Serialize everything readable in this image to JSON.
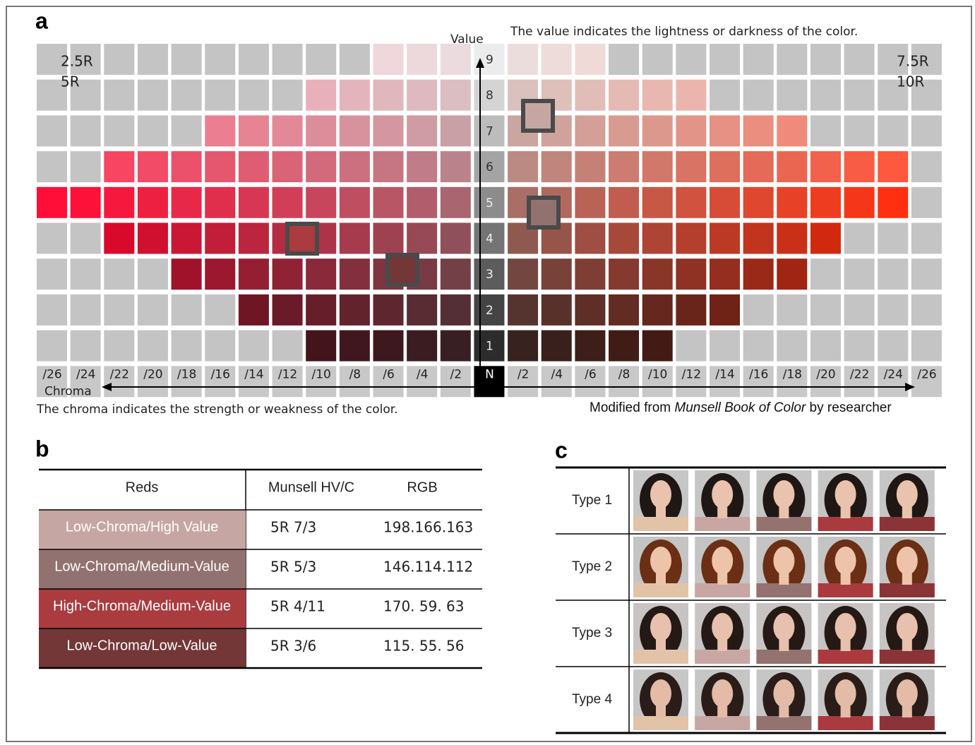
{
  "panel_a": {
    "label": "a",
    "value_axis": "Value",
    "value_note": "The value indicates the lightness or darkness of the color.",
    "hues_left": [
      "2.5R",
      "5R"
    ],
    "hues_right": [
      "7.5R",
      "10R"
    ],
    "values": [
      "9",
      "8",
      "7",
      "6",
      "5",
      "4",
      "3",
      "2",
      "1"
    ],
    "chroma_labels": [
      "/26",
      "/24",
      "/22",
      "/20",
      "/18",
      "/16",
      "/14",
      "/12",
      "/10",
      "/8",
      "/6",
      "/4",
      "/2",
      "N",
      "/2",
      "/4",
      "/6",
      "/8",
      "/10",
      "/12",
      "/14",
      "/16",
      "/18",
      "/20",
      "/22",
      "/24",
      "/26"
    ],
    "chroma_axis": "Chroma",
    "chroma_note": "The chroma indicates the strength or weakness of the color.",
    "credit": {
      "prefix": "Modified from ",
      "title": "Munsell Book of Color",
      "suffix": " by researcher"
    }
  },
  "panel_b": {
    "label": "b",
    "header": [
      "Reds",
      "Munsell HV/C",
      "RGB"
    ],
    "rows": [
      [
        "Low-Chroma/High Value",
        "5R 7/3",
        "198.166.163"
      ],
      [
        "Low-Chroma/Medium-Value",
        "5R 5/3",
        "146.114.112"
      ],
      [
        "High-Chroma/Medium-Value",
        "5R 4/11",
        "170. 59. 63"
      ],
      [
        "Low-Chroma/Low-Value",
        "5R 3/6",
        "115. 55. 56"
      ]
    ]
  },
  "panel_c": {
    "label": "c",
    "rows": [
      "Type 1",
      "Type 2",
      "Type 3",
      "Type 4"
    ]
  }
}
